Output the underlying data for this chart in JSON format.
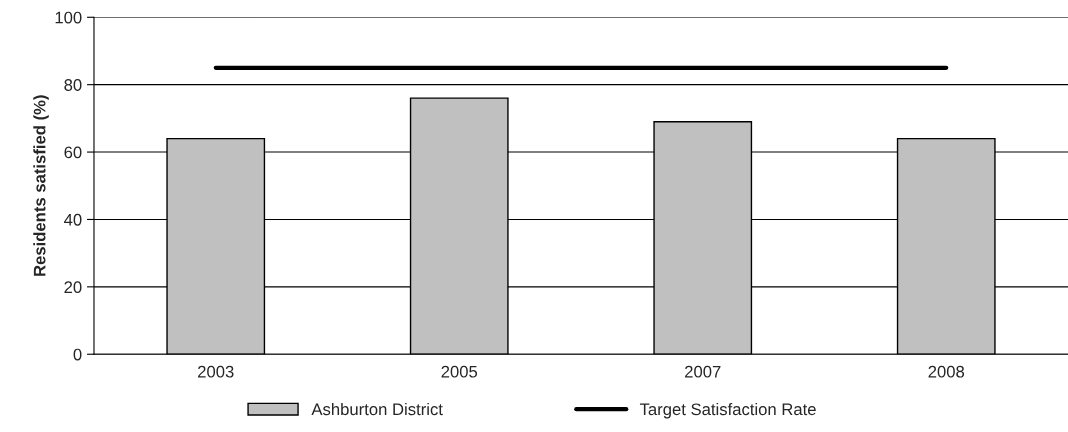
{
  "chart_data": {
    "type": "bar",
    "ylabel": "Residents satisfied (%)",
    "categories": [
      "2003",
      "2005",
      "2007",
      "2008"
    ],
    "series": [
      {
        "name": "Ashburton District",
        "color": "#c0c0c0",
        "values": [
          64,
          76,
          69,
          64
        ]
      },
      {
        "name": "Target Satisfaction Rate",
        "type": "line",
        "color": "#000000",
        "values": [
          85,
          85,
          85,
          85
        ]
      }
    ],
    "ylim": [
      0,
      100
    ],
    "yticks": [
      0,
      20,
      40,
      60,
      80,
      100
    ],
    "grid": "y",
    "legend": "bottom",
    "marker": "none",
    "line_style": "solid"
  }
}
